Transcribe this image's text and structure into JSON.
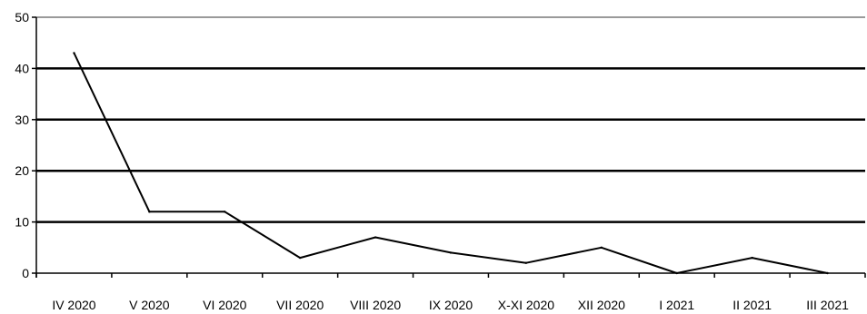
{
  "chart_data": {
    "type": "line",
    "categories": [
      "IV 2020",
      "V 2020",
      "VI 2020",
      "VII 2020",
      "VIII 2020",
      "IX 2020",
      "X-XI 2020",
      "XII 2020",
      "I 2021",
      "II 2021",
      "III 2021"
    ],
    "series": [
      {
        "values": [
          43,
          12,
          12,
          3,
          7,
          4,
          2,
          5,
          0,
          3,
          0
        ]
      }
    ],
    "ylim": [
      0,
      50
    ],
    "yticks": [
      0,
      10,
      20,
      30,
      40,
      50
    ],
    "grid": true,
    "legend": "none",
    "colors": {
      "line": "#000000",
      "grid": "#000000",
      "top_grid": "#9a9a9a"
    }
  }
}
